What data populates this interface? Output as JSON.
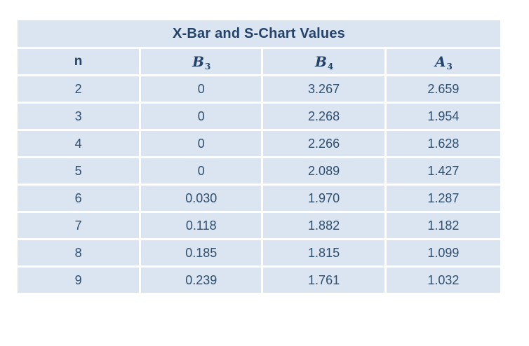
{
  "table": {
    "title": "X-Bar and S-Chart Values",
    "columns": [
      {
        "label": "n"
      },
      {
        "base": "B",
        "sub": "3"
      },
      {
        "base": "B",
        "sub": "4"
      },
      {
        "base": "A",
        "sub": "3"
      }
    ],
    "rows": [
      [
        "2",
        "0",
        "3.267",
        "2.659"
      ],
      [
        "3",
        "0",
        "2.268",
        "1.954"
      ],
      [
        "4",
        "0",
        "2.266",
        "1.628"
      ],
      [
        "5",
        "0",
        "2.089",
        "1.427"
      ],
      [
        "6",
        "0.030",
        "1.970",
        "1.287"
      ],
      [
        "7",
        "0.118",
        "1.882",
        "1.182"
      ],
      [
        "8",
        "0.185",
        "1.815",
        "1.099"
      ],
      [
        "9",
        "0.239",
        "1.761",
        "1.032"
      ]
    ]
  },
  "colors": {
    "cell_fill": "#dbe5f1",
    "gridline": "#ffffff",
    "text": "#2f4f6e",
    "title_text": "#24436b",
    "page_bg": "#ffffff"
  },
  "chart_data": {
    "type": "table",
    "title": "X-Bar and S-Chart Values",
    "columns": [
      "n",
      "B3",
      "B4",
      "A3"
    ],
    "rows": [
      [
        2,
        0,
        3.267,
        2.659
      ],
      [
        3,
        0,
        2.268,
        1.954
      ],
      [
        4,
        0,
        2.266,
        1.628
      ],
      [
        5,
        0,
        2.089,
        1.427
      ],
      [
        6,
        0.03,
        1.97,
        1.287
      ],
      [
        7,
        0.118,
        1.882,
        1.182
      ],
      [
        8,
        0.185,
        1.815,
        1.099
      ],
      [
        9,
        0.239,
        1.761,
        1.032
      ]
    ]
  }
}
